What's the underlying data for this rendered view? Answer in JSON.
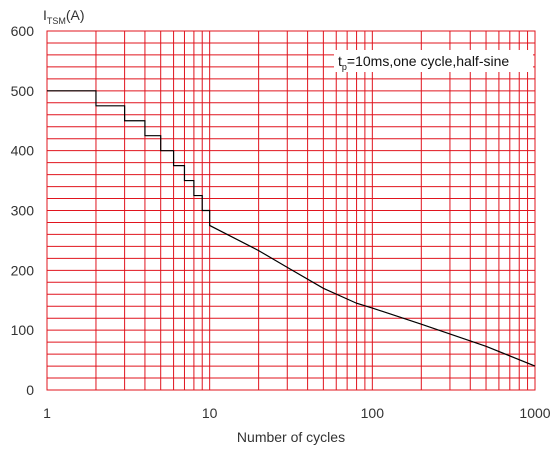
{
  "chart_data": {
    "type": "line",
    "title": "",
    "ylabel_main": "I",
    "ylabel_sub": "TSM",
    "ylabel_unit": "(A)",
    "xlabel": "Number of cycles",
    "x_scale": "log",
    "xlim": [
      1,
      1000
    ],
    "ylim": [
      0,
      600
    ],
    "x_ticks": [
      1,
      10,
      100,
      1000
    ],
    "x_tick_labels": [
      "1",
      "10",
      "100",
      "1000"
    ],
    "y_ticks": [
      0,
      100,
      200,
      300,
      400,
      500,
      600
    ],
    "y_tick_labels": [
      "0",
      "100",
      "200",
      "300",
      "400",
      "500",
      "600"
    ],
    "grid": true,
    "annotation": {
      "main": "t",
      "sub": "p",
      "rest": "=10ms,one cycle,half-sine",
      "placement": "top-right"
    },
    "series": [
      {
        "x": [
          1,
          2,
          2,
          3,
          3,
          4,
          4,
          5,
          5,
          6,
          6,
          7,
          7,
          8,
          8,
          9,
          9,
          10,
          10,
          20,
          30,
          50,
          80,
          100,
          200,
          500,
          1000
        ],
        "y": [
          500,
          500,
          475,
          475,
          450,
          450,
          425,
          425,
          400,
          400,
          375,
          375,
          350,
          350,
          325,
          325,
          300,
          300,
          275,
          233,
          205,
          170,
          145,
          137,
          110,
          73,
          40
        ]
      }
    ],
    "colors": {
      "grid": "#e0141e",
      "line": "#000000",
      "text": "#333333"
    }
  }
}
